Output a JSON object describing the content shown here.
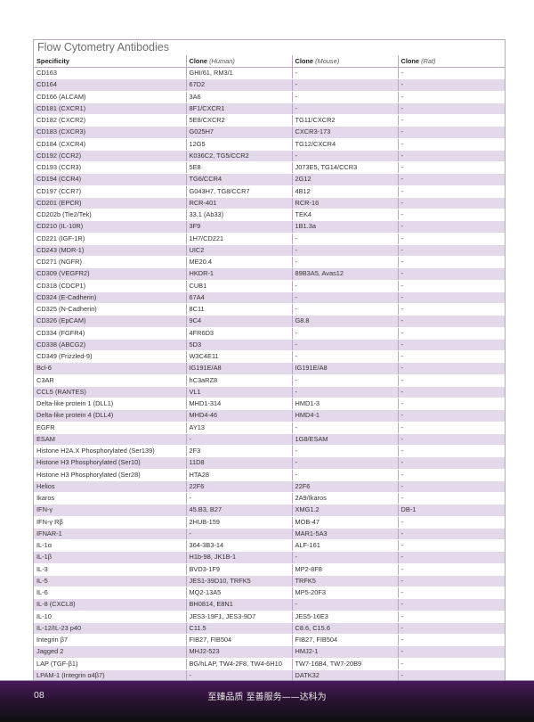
{
  "title": "Flow Cytometry Antibodies",
  "headers": [
    {
      "main": "Specificity",
      "sub": ""
    },
    {
      "main": "Clone",
      "sub": "(Human)"
    },
    {
      "main": "Clone",
      "sub": "(Mouse)"
    },
    {
      "main": "Clone",
      "sub": "(Rat)"
    }
  ],
  "rows": [
    [
      "CD163",
      "GHI/61, RM3/1",
      "-",
      "-"
    ],
    [
      "CD164",
      "67D2",
      "-",
      "-"
    ],
    [
      "CD166 (ALCAM)",
      "3A6",
      "-",
      "-"
    ],
    [
      "CD181 (CXCR1)",
      "8F1/CXCR1",
      "-",
      "-"
    ],
    [
      "CD182 (CXCR2)",
      "5E8/CXCR2",
      "TG11/CXCR2",
      "-"
    ],
    [
      "CD183 (CXCR3)",
      "G025H7",
      "CXCR3-173",
      "-"
    ],
    [
      "CD184 (CXCR4)",
      "12G5",
      "TG12/CXCR4",
      "-"
    ],
    [
      "CD192 (CCR2)",
      "K036C2, TG5/CCR2",
      "-",
      "-"
    ],
    [
      "CD193 (CCR3)",
      "5E8",
      "J073E5, TG14/CCR3",
      "-"
    ],
    [
      "CD194 (CCR4)",
      "TG6/CCR4",
      "2G12",
      "-"
    ],
    [
      "CD197 (CCR7)",
      "G043H7, TG8/CCR7",
      "4B12",
      "-"
    ],
    [
      "CD201 (EPCR)",
      "RCR-401",
      "RCR-16",
      "-"
    ],
    [
      "CD202b (Tie2/Tek)",
      "33.1 (Ab33)",
      "TEK4",
      "-"
    ],
    [
      "CD210 (IL-10R)",
      "3F9",
      "1B1.3a",
      "-"
    ],
    [
      "CD221 (IGF-1R)",
      "1H7/CD221",
      "-",
      "-"
    ],
    [
      "CD243 (MDR-1)",
      "UIC2",
      "-",
      "-"
    ],
    [
      "CD271 (NGFR)",
      "ME20.4",
      "-",
      "-"
    ],
    [
      "CD309 (VEGFR2)",
      "HKDR-1",
      "89B3A5, Avas12",
      "-"
    ],
    [
      "CD318 (CDCP1)",
      "CUB1",
      "-",
      "-"
    ],
    [
      "CD324 (E-Cadherin)",
      "67A4",
      "-",
      "-"
    ],
    [
      "CD325 (N-Cadherin)",
      "8C11",
      "-",
      "-"
    ],
    [
      "CD326 (EpCAM)",
      "9C4",
      "G8.8",
      "-"
    ],
    [
      "CD334 (FGFR4)",
      "4FR6D3",
      "-",
      "-"
    ],
    [
      "CD338 (ABCG2)",
      "5D3",
      "-",
      "-"
    ],
    [
      "CD349 (Frizzled-9)",
      "W3C4E11",
      "-",
      "-"
    ],
    [
      "Bcl-6",
      "IG191E/A8",
      "IG191E/A8",
      "-"
    ],
    [
      "C3AR",
      "hC3aRZ8",
      "-",
      "-"
    ],
    [
      "CCL5 (RANTES)",
      "VL1",
      "-",
      "-"
    ],
    [
      "Delta-like protein 1 (DLL1)",
      "MHD1-314",
      "HMD1-3",
      "-"
    ],
    [
      "Delta-like protein 4 (DLL4)",
      "MHD4-46",
      "HMD4-1",
      "-"
    ],
    [
      "EGFR",
      "AY13",
      "-",
      "-"
    ],
    [
      "ESAM",
      "-",
      "1G8/ESAM",
      "-"
    ],
    [
      "Histone H2A.X Phosphorylated (Ser139)",
      "2F3",
      "-",
      "-"
    ],
    [
      "Histone H3 Phosphorylated (Ser10)",
      "11D8",
      "-",
      "-"
    ],
    [
      "Histone H3 Phosphorylated (Ser28)",
      "HTA28",
      "-",
      "-"
    ],
    [
      "Helios",
      "22F6",
      "22F6",
      "-"
    ],
    [
      "Ikaros",
      "-",
      "2A9/Ikaros",
      "-"
    ],
    [
      "IFN-γ",
      "45.B3, B27",
      "XMG1.2",
      "DB-1"
    ],
    [
      "IFN-γ Rβ",
      "2HUB-159",
      "MOB-47",
      "-"
    ],
    [
      "IFNAR-1",
      "-",
      "MAR1-5A3",
      "-"
    ],
    [
      "IL-1α",
      "364-3B3-14",
      "ALF-161",
      "-"
    ],
    [
      "IL-1β",
      "H1b-98, JK1B-1",
      "-",
      "-"
    ],
    [
      "IL-3",
      "BVD3-1F9",
      "MP2-8F8",
      "-"
    ],
    [
      "IL-5",
      "JES1-39D10, TRFK5",
      "TRFK5",
      "-"
    ],
    [
      "IL-6",
      "MQ2-13A5",
      "MP5-20F3",
      "-"
    ],
    [
      "IL-8 (CXCL8)",
      "BH0814, E8N1",
      "-",
      "-"
    ],
    [
      "IL-10",
      "JES3-19F1, JES3-9D7",
      "JES5-16E3",
      "-"
    ],
    [
      "IL-12/IL-23 p40",
      "C11.5",
      "C8.6, C15.6",
      "-"
    ],
    [
      "Integrin β7",
      "FIB27, FIB504",
      "FIB27, FIB504",
      "-"
    ],
    [
      "Jagged 2",
      "MHJ2-523",
      "HMJ2-1",
      "-"
    ],
    [
      "LAP (TGF-β1)",
      "BG/hLAP, TW4-2F8, TW4-6H10",
      "TW7-16B4, TW7-20B9",
      "-"
    ],
    [
      "LPAM-1 (Integrin α4β7)",
      "-",
      "DATK32",
      "-"
    ]
  ],
  "footer": {
    "page_number": "08",
    "slogan": "至臻品质 至善服务——达科为"
  },
  "colors": {
    "stripe": "#e4d9eb",
    "border": "#b9a7c9",
    "footer_top": "#4a1a5c",
    "footer_bottom": "#111111"
  }
}
